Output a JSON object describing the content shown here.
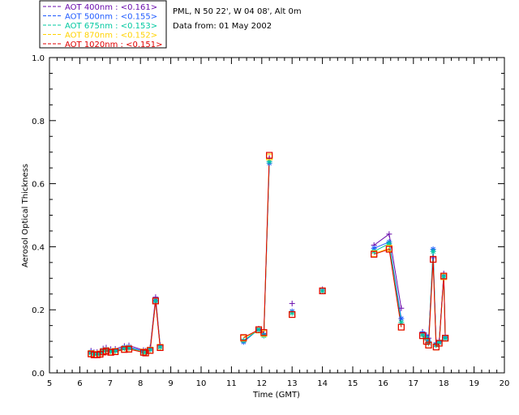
{
  "info": {
    "site": "PML, N 50 22', W 04 08', Alt 0m",
    "date": "Data from: 01 May 2002"
  },
  "chart_data": {
    "type": "line",
    "xlabel": "Time (GMT)",
    "ylabel": "Aerosol Optical Thickness",
    "xlim": [
      5,
      20
    ],
    "ylim": [
      0.0,
      1.0
    ],
    "xticks": [
      "5",
      "6",
      "7",
      "8",
      "9",
      "10",
      "11",
      "12",
      "13",
      "14",
      "15",
      "16",
      "17",
      "18",
      "19",
      "20"
    ],
    "yticks": [
      "0.0",
      "0.2",
      "0.4",
      "0.6",
      "0.8",
      "1.0"
    ],
    "legend_position": "top-left",
    "series": [
      {
        "name": "AOT  400nm : <0.161>",
        "color": "#6a0dad",
        "marker": "plus",
        "x": [
          6.37,
          6.47,
          6.57,
          6.67,
          6.77,
          6.87,
          7.02,
          7.17,
          7.47,
          7.62,
          8.1,
          8.17,
          8.32,
          8.5,
          8.65,
          11.4,
          11.9,
          12.07,
          12.25,
          13.0,
          14.0,
          15.7,
          16.2,
          16.6,
          17.3,
          17.43,
          17.5,
          17.65,
          17.75,
          17.85,
          18.0,
          18.05
        ],
        "y": [
          0.07,
          0.065,
          0.066,
          0.068,
          0.077,
          0.08,
          0.075,
          0.076,
          0.085,
          0.087,
          0.072,
          0.07,
          0.08,
          0.24,
          0.087,
          0.1,
          0.14,
          0.125,
          0.68,
          0.22,
          0.265,
          0.405,
          0.44,
          0.205,
          0.13,
          0.12,
          0.11,
          0.365,
          0.095,
          0.1,
          0.315,
          0.115
        ]
      },
      {
        "name": "AOT  500nm : <0.155>",
        "color": "#1e5aff",
        "marker": "star",
        "x": [
          6.37,
          6.47,
          6.57,
          6.67,
          6.77,
          6.87,
          7.02,
          7.17,
          7.47,
          7.62,
          8.1,
          8.17,
          8.32,
          8.5,
          8.65,
          11.4,
          11.9,
          12.07,
          12.25,
          13.0,
          14.0,
          15.7,
          16.2,
          16.6,
          17.3,
          17.43,
          17.5,
          17.65,
          17.75,
          17.85,
          18.0,
          18.05
        ],
        "y": [
          0.066,
          0.062,
          0.062,
          0.064,
          0.072,
          0.074,
          0.07,
          0.071,
          0.081,
          0.082,
          0.069,
          0.067,
          0.076,
          0.23,
          0.083,
          0.098,
          0.138,
          0.12,
          0.665,
          0.195,
          0.26,
          0.395,
          0.415,
          0.172,
          0.125,
          0.115,
          0.1,
          0.392,
          0.09,
          0.098,
          0.31,
          0.112
        ]
      },
      {
        "name": "AOT  675nm : <0.153>",
        "color": "#00c8a0",
        "marker": "star",
        "x": [
          6.37,
          6.47,
          6.57,
          6.67,
          6.77,
          6.87,
          7.02,
          7.17,
          7.47,
          7.62,
          8.1,
          8.17,
          8.32,
          8.5,
          8.65,
          11.4,
          11.9,
          12.07,
          12.25,
          13.0,
          14.0,
          15.7,
          16.2,
          16.6,
          17.3,
          17.43,
          17.5,
          17.65,
          17.75,
          17.85,
          18.0,
          18.05
        ],
        "y": [
          0.063,
          0.06,
          0.06,
          0.062,
          0.07,
          0.072,
          0.068,
          0.07,
          0.078,
          0.079,
          0.067,
          0.065,
          0.074,
          0.228,
          0.082,
          0.102,
          0.137,
          0.118,
          0.67,
          0.19,
          0.26,
          0.385,
          0.41,
          0.16,
          0.12,
          0.11,
          0.095,
          0.385,
          0.088,
          0.096,
          0.305,
          0.11
        ]
      },
      {
        "name": "AOT  870nm : <0.152>",
        "color": "#ffd200",
        "marker": "square",
        "x": [
          6.37,
          6.47,
          6.57,
          6.67,
          6.77,
          6.87,
          7.02,
          7.17,
          7.47,
          7.62,
          8.1,
          8.17,
          8.32,
          8.5,
          8.65,
          11.4,
          11.9,
          12.07,
          12.25,
          13.0,
          14.0,
          15.7,
          16.2,
          16.6,
          17.3,
          17.43,
          17.5,
          17.65,
          17.75,
          17.85,
          18.0,
          18.05
        ],
        "y": [
          0.061,
          0.058,
          0.058,
          0.06,
          0.067,
          0.07,
          0.066,
          0.068,
          0.075,
          0.076,
          0.066,
          0.064,
          0.072,
          0.228,
          0.081,
          0.11,
          0.136,
          0.125,
          0.685,
          0.185,
          0.26,
          0.378,
          0.395,
          0.145,
          0.118,
          0.1,
          0.088,
          0.36,
          0.082,
          0.094,
          0.305,
          0.11
        ]
      },
      {
        "name": "AOT 1020nm : <0.151>",
        "color": "#e00000",
        "marker": "square",
        "x": [
          6.37,
          6.47,
          6.57,
          6.67,
          6.77,
          6.87,
          7.02,
          7.17,
          7.47,
          7.62,
          8.1,
          8.17,
          8.32,
          8.5,
          8.65,
          11.4,
          11.9,
          12.07,
          12.25,
          13.0,
          14.0,
          15.7,
          16.2,
          16.6,
          17.3,
          17.43,
          17.5,
          17.65,
          17.75,
          17.85,
          18.0,
          18.05
        ],
        "y": [
          0.06,
          0.057,
          0.057,
          0.059,
          0.066,
          0.069,
          0.065,
          0.067,
          0.074,
          0.075,
          0.065,
          0.063,
          0.071,
          0.228,
          0.08,
          0.112,
          0.137,
          0.128,
          0.69,
          0.185,
          0.26,
          0.376,
          0.392,
          0.145,
          0.118,
          0.1,
          0.088,
          0.36,
          0.082,
          0.094,
          0.307,
          0.11
        ]
      }
    ]
  }
}
